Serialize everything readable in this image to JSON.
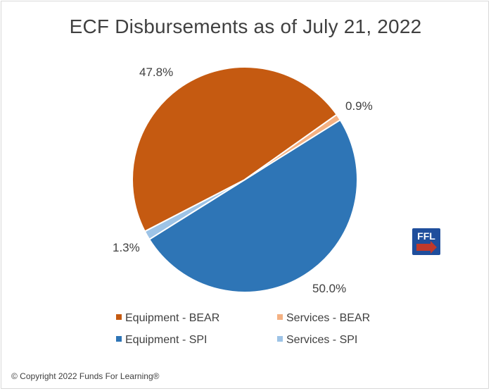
{
  "chart_data": {
    "type": "pie",
    "title": "ECF Disbursements as of July 21, 2022",
    "slices": [
      {
        "name": "Equipment - BEAR",
        "value": 47.8,
        "label": "47.8%",
        "color": "#c55a11"
      },
      {
        "name": "Services - BEAR",
        "value": 0.9,
        "label": "0.9%",
        "color": "#f4b183"
      },
      {
        "name": "Equipment - SPI",
        "value": 50.0,
        "label": "50.0%",
        "color": "#2e75b6"
      },
      {
        "name": "Services - SPI",
        "value": 1.3,
        "label": "1.3%",
        "color": "#9dc3e6"
      }
    ],
    "legend_position": "bottom"
  },
  "logo": {
    "text": "FFL",
    "colors": {
      "background": "#1f4e9c",
      "arrow": "#c0392b"
    }
  },
  "footer": {
    "copyright": "© Copyright 2022 Funds For Learning®"
  }
}
